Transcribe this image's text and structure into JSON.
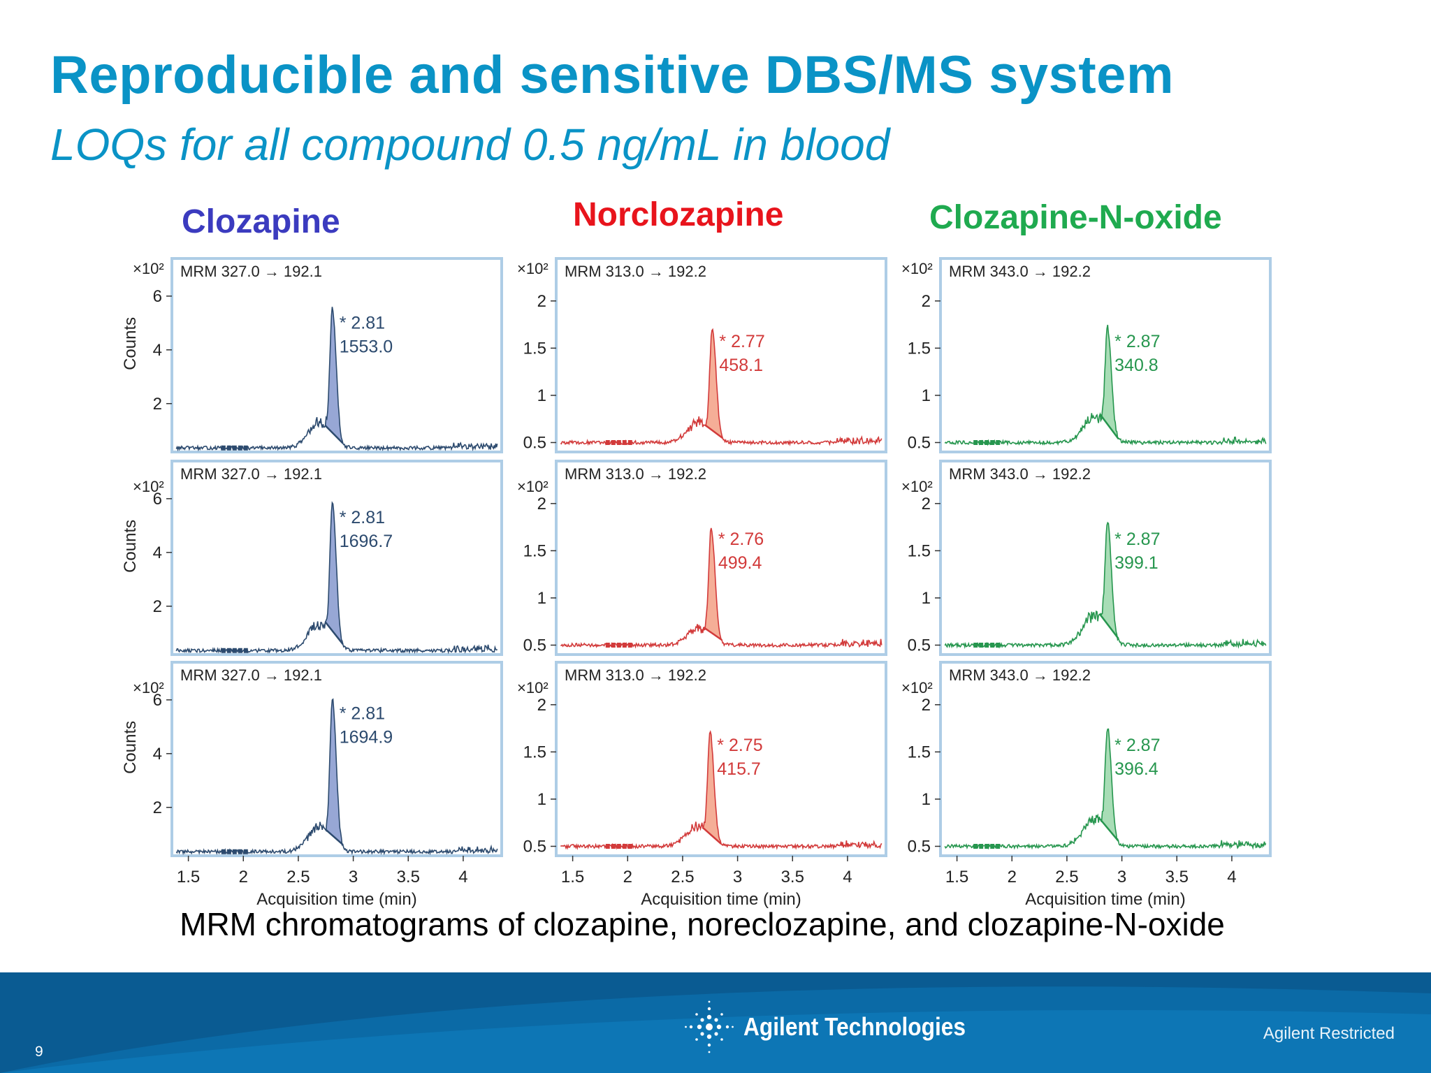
{
  "slide": {
    "title": "Reproducible and sensitive DBS/MS system",
    "subtitle": "LOQs for all compound 0.5 ng/mL in blood",
    "caption": "MRM chromatograms of clozapine, noreclozapine, and clozapine-N-oxide",
    "page_number": "9",
    "restricted_label": "Agilent Restricted",
    "logo_text": "Agilent Technologies"
  },
  "columns": [
    {
      "name": "Clozapine",
      "color": "#3b3bbf"
    },
    {
      "name": "Norclozapine",
      "color": "#e8141c"
    },
    {
      "name": "Clozapine-N-oxide",
      "color": "#1faa4f"
    }
  ],
  "chart_data": [
    {
      "type": "line",
      "compound": "Clozapine",
      "transition": "MRM 327.0 → 192.1",
      "peak_rt": "* 2.81",
      "peak_area": "1553.0",
      "ylabel": "Counts",
      "xlabel": "",
      "y_multiplier": "×10²",
      "x_ticks": [
        "1.5",
        "2",
        "2.5",
        "3",
        "3.5",
        "4"
      ],
      "y_ticks": [
        "2",
        "4",
        "6"
      ],
      "xlim": [
        1.35,
        4.35
      ],
      "ylim": [
        0.2,
        7.4
      ],
      "baseline": 0.35,
      "shoulder": 1.3,
      "peak_x": 2.81,
      "peak_y": 5.1,
      "line_color": "#2c4a6e",
      "fill_color": "#8c9dd0"
    },
    {
      "type": "line",
      "compound": "Norclozapine",
      "transition": "MRM 313.0 → 192.2",
      "peak_rt": "* 2.77",
      "peak_area": "458.1",
      "ylabel": "",
      "xlabel": "",
      "y_multiplier": "×10²",
      "x_ticks": [
        "1.5",
        "2",
        "2.5",
        "3",
        "3.5",
        "4"
      ],
      "y_ticks": [
        "0.5",
        "1",
        "1.5",
        "2"
      ],
      "xlim": [
        1.35,
        4.35
      ],
      "ylim": [
        0.4,
        2.45
      ],
      "baseline": 0.5,
      "shoulder": 0.72,
      "peak_x": 2.77,
      "peak_y": 1.6,
      "line_color": "#d23a3a",
      "fill_color": "#f4a58c"
    },
    {
      "type": "line",
      "compound": "Clozapine-N-oxide",
      "transition": "MRM 343.0 → 192.2",
      "peak_rt": "* 2.87",
      "peak_area": "340.8",
      "ylabel": "",
      "xlabel": "",
      "y_multiplier": "×10²",
      "x_ticks": [
        "1.5",
        "2",
        "2.5",
        "3",
        "3.5",
        "4"
      ],
      "y_ticks": [
        "0.5",
        "1",
        "1.5",
        "2"
      ],
      "xlim": [
        1.35,
        4.35
      ],
      "ylim": [
        0.4,
        2.45
      ],
      "baseline": 0.5,
      "shoulder": 0.78,
      "peak_x": 2.87,
      "peak_y": 1.6,
      "line_color": "#26964e",
      "fill_color": "#9fd9ae"
    },
    {
      "type": "line",
      "compound": "Clozapine",
      "transition": "MRM 327.0 → 192.1",
      "peak_rt": "* 2.81",
      "peak_area": "1696.7",
      "ylabel": "Counts",
      "xlabel": "",
      "y_multiplier": "×10²",
      "x_ticks": [
        "1.5",
        "2",
        "2.5",
        "3",
        "3.5",
        "4"
      ],
      "y_ticks": [
        "2",
        "4",
        "6"
      ],
      "xlim": [
        1.35,
        4.35
      ],
      "ylim": [
        0.2,
        7.4
      ],
      "baseline": 0.35,
      "shoulder": 1.3,
      "peak_x": 2.81,
      "peak_y": 5.4,
      "line_color": "#2c4a6e",
      "fill_color": "#8c9dd0"
    },
    {
      "type": "line",
      "compound": "Norclozapine",
      "transition": "MRM 313.0 → 192.2",
      "peak_rt": "* 2.76",
      "peak_area": "499.4",
      "ylabel": "",
      "xlabel": "",
      "y_multiplier": "×10²",
      "x_ticks": [
        "1.5",
        "2",
        "2.5",
        "3",
        "3.5",
        "4"
      ],
      "y_ticks": [
        "0.5",
        "1",
        "1.5",
        "2"
      ],
      "xlim": [
        1.35,
        4.35
      ],
      "ylim": [
        0.4,
        2.45
      ],
      "baseline": 0.5,
      "shoulder": 0.68,
      "peak_x": 2.76,
      "peak_y": 1.65,
      "line_color": "#d23a3a",
      "fill_color": "#f4a58c"
    },
    {
      "type": "line",
      "compound": "Clozapine-N-oxide",
      "transition": "MRM 343.0 → 192.2",
      "peak_rt": "* 2.87",
      "peak_area": "399.1",
      "ylabel": "",
      "xlabel": "",
      "y_multiplier": "×10²",
      "x_ticks": [
        "1.5",
        "2",
        "2.5",
        "3",
        "3.5",
        "4"
      ],
      "y_ticks": [
        "0.5",
        "1",
        "1.5",
        "2"
      ],
      "xlim": [
        1.35,
        4.35
      ],
      "ylim": [
        0.4,
        2.45
      ],
      "baseline": 0.5,
      "shoulder": 0.82,
      "peak_x": 2.87,
      "peak_y": 1.65,
      "line_color": "#26964e",
      "fill_color": "#9fd9ae"
    },
    {
      "type": "line",
      "compound": "Clozapine",
      "transition": "MRM 327.0 → 192.1",
      "peak_rt": "* 2.81",
      "peak_area": "1694.9",
      "ylabel": "Counts",
      "xlabel": "Acquisition time (min)",
      "y_multiplier": "×10²",
      "x_ticks": [
        "1.5",
        "2",
        "2.5",
        "3",
        "3.5",
        "4"
      ],
      "y_ticks": [
        "2",
        "4",
        "6"
      ],
      "xlim": [
        1.35,
        4.35
      ],
      "ylim": [
        0.2,
        7.4
      ],
      "baseline": 0.35,
      "shoulder": 1.3,
      "peak_x": 2.81,
      "peak_y": 5.6,
      "line_color": "#2c4a6e",
      "fill_color": "#8c9dd0"
    },
    {
      "type": "line",
      "compound": "Norclozapine",
      "transition": "MRM 313.0 → 192.2",
      "peak_rt": "* 2.75",
      "peak_area": "415.7",
      "ylabel": "",
      "xlabel": "Acquisition time (min)",
      "y_multiplier": "×10²",
      "x_ticks": [
        "1.5",
        "2",
        "2.5",
        "3",
        "3.5",
        "4"
      ],
      "y_ticks": [
        "0.5",
        "1",
        "1.5",
        "2"
      ],
      "xlim": [
        1.35,
        4.35
      ],
      "ylim": [
        0.4,
        2.45
      ],
      "baseline": 0.5,
      "shoulder": 0.72,
      "peak_x": 2.75,
      "peak_y": 1.6,
      "line_color": "#d23a3a",
      "fill_color": "#f4a58c"
    },
    {
      "type": "line",
      "compound": "Clozapine-N-oxide",
      "transition": "MRM 343.0 → 192.2",
      "peak_rt": "* 2.87",
      "peak_area": "396.4",
      "ylabel": "",
      "xlabel": "Acquisition time (min)",
      "y_multiplier": "×10²",
      "x_ticks": [
        "1.5",
        "2",
        "2.5",
        "3",
        "3.5",
        "4"
      ],
      "y_ticks": [
        "0.5",
        "1",
        "1.5",
        "2"
      ],
      "xlim": [
        1.35,
        4.35
      ],
      "ylim": [
        0.4,
        2.45
      ],
      "baseline": 0.5,
      "shoulder": 0.8,
      "peak_x": 2.87,
      "peak_y": 1.6,
      "line_color": "#26964e",
      "fill_color": "#9fd9ae"
    }
  ]
}
